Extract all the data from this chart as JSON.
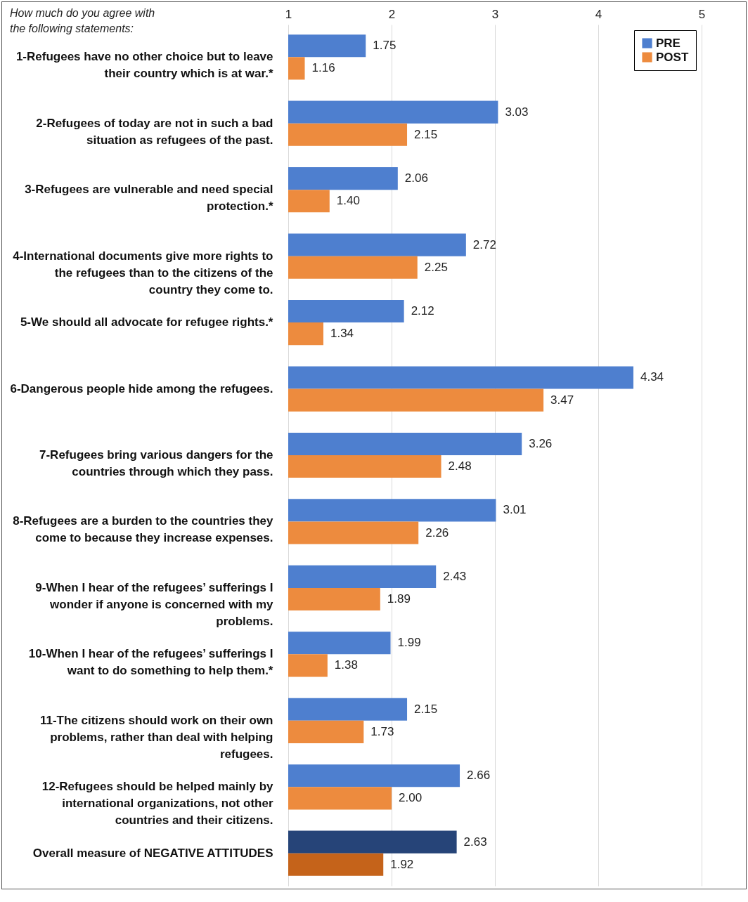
{
  "chart_data": {
    "type": "bar",
    "orientation": "horizontal",
    "title": "How much do you agree with the following statements:",
    "categories": [
      "1-Refugees have no other choice but to leave their country which is at war.*",
      "2-Refugees of today are not in such a bad situation as refugees of the past.",
      "3-Refugees are vulnerable and need special protection.*",
      "4-International documents give more rights to the refugees than to the citizens of the country they come to.",
      "5-We should all advocate for refugee rights.*",
      "6-Dangerous people hide among the refugees.",
      "7-Refugees bring various dangers for the countries through which they pass.",
      "8-Refugees are a burden to the countries they come to because they increase expenses.",
      "9-When I hear of the refugees’ sufferings I wonder if anyone is concerned with my problems.",
      "10-When I hear of the refugees’ sufferings I want to do something to help them.*",
      "11-The citizens should work on their own problems, rather than deal with helping refugees.",
      "12-Refugees should be helped mainly by international organizations, not other countries and their citizens.",
      "Overall measure of NEGATIVE ATTITUDES"
    ],
    "series": [
      {
        "name": "PRE",
        "color": "#4e7fcf",
        "colors": [
          "#4e7fcf",
          "#4e7fcf",
          "#4e7fcf",
          "#4e7fcf",
          "#4e7fcf",
          "#4e7fcf",
          "#4e7fcf",
          "#4e7fcf",
          "#4e7fcf",
          "#4e7fcf",
          "#4e7fcf",
          "#4e7fcf",
          "#264478"
        ],
        "values": [
          1.75,
          3.03,
          2.06,
          2.72,
          2.12,
          4.34,
          3.26,
          3.01,
          2.43,
          1.99,
          2.15,
          2.66,
          2.63
        ],
        "value_labels": [
          "1.75",
          "3.03",
          "2.06",
          "2.72",
          "2.12",
          "4.34",
          "3.26",
          "3.01",
          "2.43",
          "1.99",
          "2.15",
          "2.66",
          "2.63"
        ]
      },
      {
        "name": "POST",
        "color": "#ed8b3e",
        "colors": [
          "#ed8b3e",
          "#ed8b3e",
          "#ed8b3e",
          "#ed8b3e",
          "#ed8b3e",
          "#ed8b3e",
          "#ed8b3e",
          "#ed8b3e",
          "#ed8b3e",
          "#ed8b3e",
          "#ed8b3e",
          "#ed8b3e",
          "#c5631a"
        ],
        "values": [
          1.16,
          2.15,
          1.4,
          2.25,
          1.34,
          3.47,
          2.48,
          2.26,
          1.89,
          1.38,
          1.73,
          2.0,
          1.92
        ],
        "value_labels": [
          "1.16",
          "2.15",
          "1.40",
          "2.25",
          "1.34",
          "3.47",
          "2.48",
          "2.26",
          "1.89",
          "1.38",
          "1.73",
          "2.00",
          "1.92"
        ]
      }
    ],
    "xlim": [
      1,
      5
    ],
    "xticks": [
      1,
      2,
      3,
      4,
      5
    ],
    "grid": "x",
    "legend": "top right"
  }
}
